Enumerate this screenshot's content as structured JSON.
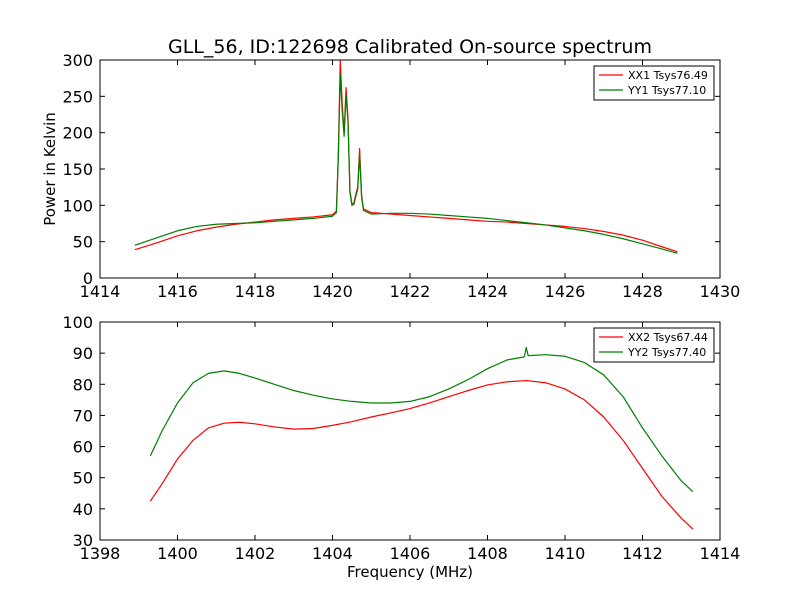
{
  "chart_data": [
    {
      "type": "line",
      "title": "GLL_56, ID:122698 Calibrated On-source spectrum",
      "xlabel": "",
      "ylabel": "Power in Kelvin",
      "xlim": [
        1414,
        1430
      ],
      "ylim": [
        0,
        300
      ],
      "xticks": [
        1414,
        1416,
        1418,
        1420,
        1422,
        1424,
        1426,
        1428,
        1430
      ],
      "yticks": [
        0,
        50,
        100,
        150,
        200,
        250,
        300
      ],
      "grid": false,
      "legend_position": "top-right",
      "series": [
        {
          "name": "XX1 Tsys76.49",
          "color": "#ff0000",
          "x": [
            1414.9,
            1415.5,
            1416.0,
            1416.5,
            1417.0,
            1417.5,
            1418.0,
            1418.5,
            1419.0,
            1419.5,
            1420.0,
            1420.1,
            1420.15,
            1420.2,
            1420.25,
            1420.3,
            1420.35,
            1420.4,
            1420.45,
            1420.5,
            1420.55,
            1420.6,
            1420.65,
            1420.7,
            1420.75,
            1420.8,
            1421.0,
            1421.5,
            1422.0,
            1422.5,
            1423.0,
            1423.5,
            1424.0,
            1424.5,
            1425.0,
            1425.5,
            1426.0,
            1426.5,
            1427.0,
            1427.5,
            1428.0,
            1428.5,
            1428.9
          ],
          "y": [
            39,
            49,
            58,
            65,
            70,
            74,
            77,
            80,
            82,
            84,
            87,
            92,
            170,
            300,
            240,
            200,
            262,
            220,
            120,
            102,
            103,
            115,
            125,
            178,
            115,
            95,
            90,
            88,
            86,
            84,
            82,
            80,
            78,
            77,
            75,
            73,
            71,
            68,
            64,
            59,
            52,
            43,
            36
          ]
        },
        {
          "name": "YY1 Tsys77.10",
          "color": "#007f00",
          "x": [
            1414.9,
            1415.5,
            1416.0,
            1416.5,
            1417.0,
            1417.5,
            1418.0,
            1418.5,
            1419.0,
            1419.5,
            1420.0,
            1420.1,
            1420.15,
            1420.2,
            1420.25,
            1420.3,
            1420.35,
            1420.4,
            1420.45,
            1420.5,
            1420.55,
            1420.6,
            1420.65,
            1420.7,
            1420.75,
            1420.8,
            1421.0,
            1421.5,
            1422.0,
            1422.5,
            1423.0,
            1423.5,
            1424.0,
            1424.5,
            1425.0,
            1425.5,
            1426.0,
            1426.5,
            1427.0,
            1427.5,
            1428.0,
            1428.5,
            1428.9
          ],
          "y": [
            45,
            56,
            65,
            71,
            74,
            75,
            76,
            78,
            80,
            82,
            85,
            90,
            165,
            280,
            230,
            195,
            252,
            215,
            118,
            100,
            101,
            112,
            122,
            170,
            112,
            93,
            88,
            89,
            89,
            88,
            86,
            84,
            82,
            79,
            76,
            73,
            69,
            65,
            60,
            54,
            47,
            40,
            34
          ]
        }
      ]
    },
    {
      "type": "line",
      "title": "",
      "xlabel": "Frequency (MHz)",
      "ylabel": "",
      "xlim": [
        1398,
        1414
      ],
      "ylim": [
        30,
        100
      ],
      "xticks": [
        1398,
        1400,
        1402,
        1404,
        1406,
        1408,
        1410,
        1412,
        1414
      ],
      "yticks": [
        30,
        40,
        50,
        60,
        70,
        80,
        90,
        100
      ],
      "grid": false,
      "legend_position": "top-right",
      "series": [
        {
          "name": "XX2 Tsys67.44",
          "color": "#ff0000",
          "x": [
            1399.3,
            1399.6,
            1400.0,
            1400.4,
            1400.8,
            1401.2,
            1401.6,
            1402.0,
            1402.5,
            1403.0,
            1403.5,
            1404.0,
            1404.5,
            1405.0,
            1405.5,
            1406.0,
            1406.5,
            1407.0,
            1407.5,
            1408.0,
            1408.5,
            1409.0,
            1409.5,
            1410.0,
            1410.5,
            1411.0,
            1411.5,
            1412.0,
            1412.5,
            1413.0,
            1413.3
          ],
          "y": [
            42.5,
            48,
            56,
            62,
            66,
            67.5,
            67.8,
            67.3,
            66.3,
            65.6,
            65.8,
            66.8,
            68,
            69.5,
            70.8,
            72.2,
            74,
            76,
            78,
            79.8,
            80.8,
            81.2,
            80.5,
            78.5,
            75,
            69.5,
            62,
            53,
            44,
            37,
            33.5
          ]
        },
        {
          "name": "YY2 Tsys77.40",
          "color": "#007f00",
          "x": [
            1399.3,
            1399.6,
            1400.0,
            1400.4,
            1400.8,
            1401.2,
            1401.6,
            1402.0,
            1402.5,
            1403.0,
            1403.5,
            1404.0,
            1404.5,
            1405.0,
            1405.5,
            1406.0,
            1406.5,
            1407.0,
            1407.5,
            1408.0,
            1408.5,
            1408.95,
            1409.0,
            1409.05,
            1409.5,
            1410.0,
            1410.5,
            1411.0,
            1411.5,
            1412.0,
            1412.5,
            1413.0,
            1413.3
          ],
          "y": [
            57,
            65,
            74,
            80.5,
            83.5,
            84.3,
            83.5,
            82,
            80,
            78,
            76.5,
            75.3,
            74.5,
            74,
            74,
            74.5,
            76,
            78.5,
            81.5,
            85,
            87.8,
            88.8,
            91.8,
            89.2,
            89.5,
            89,
            87,
            83,
            76,
            66,
            57,
            49,
            45.5
          ]
        }
      ]
    }
  ]
}
